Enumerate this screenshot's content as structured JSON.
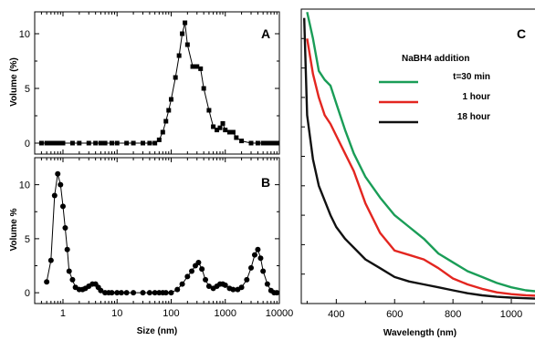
{
  "chart_data": [
    {
      "panel": "A",
      "type": "scatter",
      "xscale": "log",
      "xlim": [
        0.3,
        10000
      ],
      "ylim": [
        -1,
        12
      ],
      "ylabel": "Volume (%)",
      "xlabel": "",
      "yticks": [
        "0",
        "5",
        "10"
      ],
      "x": [
        0.4,
        0.5,
        0.6,
        0.7,
        0.8,
        0.9,
        1,
        1.5,
        2,
        3,
        4,
        5,
        6,
        8,
        10,
        15,
        20,
        30,
        40,
        50,
        60,
        70,
        80,
        90,
        100,
        120,
        140,
        160,
        180,
        200,
        250,
        300,
        350,
        400,
        500,
        600,
        700,
        800,
        900,
        1000,
        1200,
        1400,
        1600,
        2000,
        3000,
        4000,
        5000,
        6000,
        7000,
        8000,
        9000
      ],
      "values": [
        0,
        0,
        0,
        0,
        0,
        0,
        0,
        0,
        0,
        0,
        0,
        0,
        0,
        0,
        0,
        0,
        0,
        0,
        0,
        0,
        0.3,
        1,
        2,
        3,
        4,
        6,
        8,
        10,
        11,
        9,
        7,
        7,
        6.8,
        5,
        3,
        1.5,
        1.2,
        1.4,
        1.8,
        1.2,
        1,
        1,
        0.5,
        0.2,
        0,
        0,
        0,
        0,
        0,
        0,
        0
      ]
    },
    {
      "panel": "B",
      "type": "scatter",
      "xscale": "log",
      "xlim": [
        0.3,
        10000
      ],
      "ylim": [
        -1,
        12.5
      ],
      "ylabel": "Volume %",
      "xlabel": "Size (nm)",
      "yticks": [
        "0",
        "5",
        "10"
      ],
      "xticks": [
        "1",
        "10",
        "100",
        "1000",
        "10000"
      ],
      "x": [
        0.5,
        0.6,
        0.7,
        0.8,
        0.9,
        1,
        1.1,
        1.2,
        1.3,
        1.5,
        1.7,
        2,
        2.3,
        2.6,
        3,
        3.5,
        4,
        4.5,
        5,
        6,
        7,
        8,
        10,
        12,
        15,
        20,
        30,
        40,
        50,
        60,
        70,
        80,
        100,
        130,
        160,
        200,
        240,
        280,
        320,
        370,
        430,
        500,
        600,
        700,
        800,
        900,
        1000,
        1200,
        1400,
        1700,
        2000,
        2500,
        3000,
        3500,
        4000,
        4500,
        5000,
        6000,
        7000,
        8000,
        9000
      ],
      "values": [
        1,
        3,
        9,
        11,
        10,
        8,
        6,
        4,
        2,
        1.2,
        0.5,
        0.3,
        0.3,
        0.4,
        0.6,
        0.8,
        0.8,
        0.5,
        0.2,
        0,
        0,
        0,
        0,
        0,
        0,
        0,
        0,
        0,
        0,
        0,
        0,
        0,
        0,
        0.3,
        0.8,
        1.5,
        2,
        2.5,
        2.8,
        2.2,
        1.2,
        0.6,
        0.4,
        0.6,
        0.8,
        0.8,
        0.7,
        0.4,
        0.3,
        0.3,
        0.5,
        1.2,
        2.3,
        3.5,
        4,
        3.2,
        2,
        0.8,
        0.2,
        0,
        0
      ]
    },
    {
      "panel": "C",
      "type": "line",
      "xlim": [
        280,
        1100
      ],
      "ylim": [
        0,
        100
      ],
      "xlabel": "Wavelength (nm)",
      "xticks": [
        "400",
        "600",
        "800",
        "1000"
      ],
      "legend_title": "NaBH4 addition",
      "legend_position": "upper-right",
      "series": [
        {
          "name": "t=30 min",
          "color": "#1a9d57",
          "x": [
            300,
            320,
            340,
            360,
            380,
            400,
            430,
            460,
            500,
            550,
            600,
            650,
            700,
            750,
            800,
            850,
            900,
            950,
            1000,
            1050,
            1100
          ],
          "values": [
            99,
            90,
            79,
            76,
            74,
            68,
            59,
            51,
            43,
            36,
            30,
            26,
            22,
            17,
            14,
            11,
            9,
            7,
            5.5,
            4.5,
            4
          ]
        },
        {
          "name": "1 hour",
          "color": "#e32620",
          "x": [
            300,
            320,
            340,
            360,
            380,
            400,
            430,
            460,
            500,
            550,
            600,
            650,
            700,
            750,
            800,
            850,
            900,
            950,
            1000,
            1050,
            1100
          ],
          "values": [
            90,
            78,
            70,
            64,
            61,
            57,
            51,
            45,
            34,
            24,
            18,
            16.5,
            15,
            12,
            8.5,
            6.5,
            5,
            3.8,
            3.2,
            2.8,
            2.6
          ]
        },
        {
          "name": "18 hour",
          "color": "#111111",
          "x": [
            290,
            300,
            320,
            340,
            360,
            380,
            400,
            430,
            460,
            500,
            550,
            600,
            650,
            700,
            750,
            800,
            850,
            900,
            950,
            1000,
            1050,
            1100
          ],
          "values": [
            97,
            64,
            49,
            40,
            35,
            30,
            26,
            22,
            19,
            15,
            12,
            9,
            7.5,
            6.5,
            5.5,
            4.5,
            3.5,
            2.8,
            2.3,
            2,
            1.8,
            1.6
          ]
        }
      ]
    }
  ],
  "labels": {
    "A": "A",
    "B": "B",
    "C": "C"
  }
}
